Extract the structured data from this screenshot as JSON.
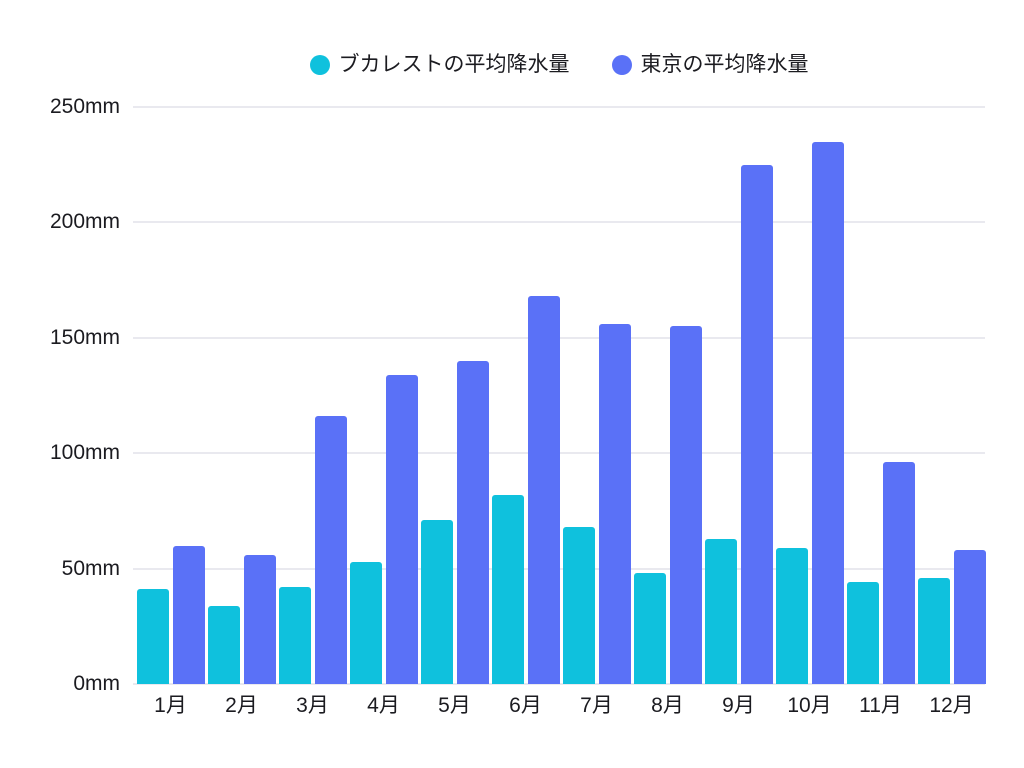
{
  "chart_data": {
    "type": "bar",
    "title": "",
    "unit": "mm",
    "categories": [
      "1月",
      "2月",
      "3月",
      "4月",
      "5月",
      "6月",
      "7月",
      "8月",
      "9月",
      "10月",
      "11月",
      "12月"
    ],
    "series": [
      {
        "key": "bucharest",
        "name": "ブカレストの平均降水量",
        "color": "#0FC1DD",
        "values": [
          41,
          34,
          42,
          53,
          71,
          82,
          68,
          48,
          63,
          59,
          44,
          46
        ]
      },
      {
        "key": "tokyo",
        "name": "東京の平均降水量",
        "color": "#5A71F7",
        "values": [
          60,
          56,
          116,
          134,
          140,
          168,
          156,
          155,
          225,
          235,
          96,
          58
        ]
      }
    ],
    "xlabel": "",
    "ylabel": "",
    "ylim": [
      0,
      250
    ],
    "y_ticks": [
      0,
      50,
      100,
      150,
      200,
      250
    ],
    "y_tick_labels": [
      "0mm",
      "50mm",
      "100mm",
      "150mm",
      "200mm",
      "250mm"
    ],
    "grid": true,
    "legend_position": "top"
  },
  "colors": {
    "background": "#FFFFFF",
    "grid": "#E9E9EF",
    "text": "#1B1B20"
  }
}
